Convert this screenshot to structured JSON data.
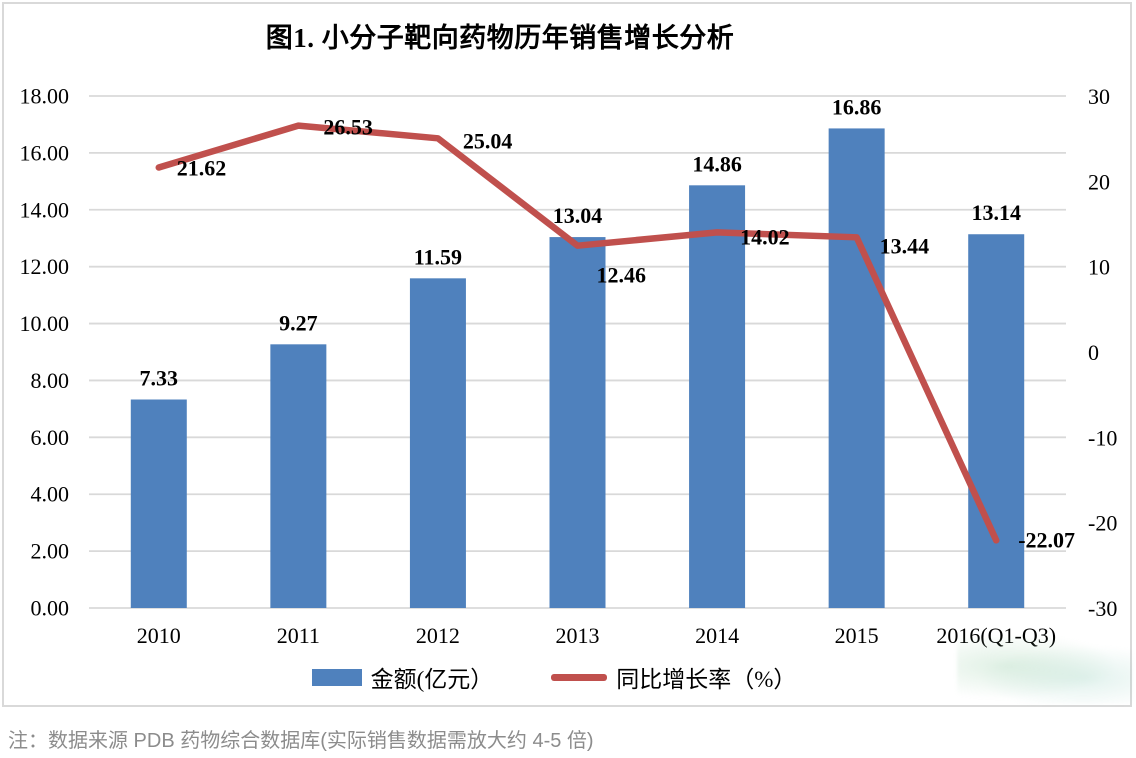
{
  "title": "图1. 小分子靶向药物历年销售增长分析",
  "footnote": "注：数据来源 PDB 药物综合数据库(实际销售数据需放大约 4-5 倍)",
  "legend": {
    "items": [
      {
        "label": "金额(亿元）",
        "swatch": "bar",
        "color": "#4F81BD"
      },
      {
        "label": "同比增长率（%）",
        "swatch": "line",
        "color": "#C0504D"
      }
    ]
  },
  "chart_data": {
    "type": "bar+line",
    "title": "图1. 小分子靶向药物历年销售增长分析",
    "categories": [
      "2010",
      "2011",
      "2012",
      "2013",
      "2014",
      "2015",
      "2016(Q1-Q3)"
    ],
    "series": [
      {
        "name": "金额(亿元）",
        "type": "bar",
        "y_axis": "left",
        "color": "#4F81BD",
        "values": [
          7.33,
          9.27,
          11.59,
          13.04,
          14.86,
          16.86,
          13.14
        ]
      },
      {
        "name": "同比增长率（%）",
        "type": "line",
        "y_axis": "right",
        "color": "#C0504D",
        "values": [
          21.62,
          26.53,
          25.04,
          12.46,
          14.02,
          13.44,
          -22.07
        ]
      }
    ],
    "left_axis": {
      "min": 0,
      "max": 18,
      "step": 2,
      "decimals": 2
    },
    "right_axis": {
      "min": -30,
      "max": 30,
      "step": 10,
      "decimals": 0
    },
    "grid": true,
    "data_labels": true,
    "legend_position": "bottom"
  },
  "colors": {
    "bar": "#4F81BD",
    "line": "#C0504D",
    "grid": "#D9D9D9",
    "frame": "#D9D9D9",
    "footnote": "#8C8C8C"
  }
}
